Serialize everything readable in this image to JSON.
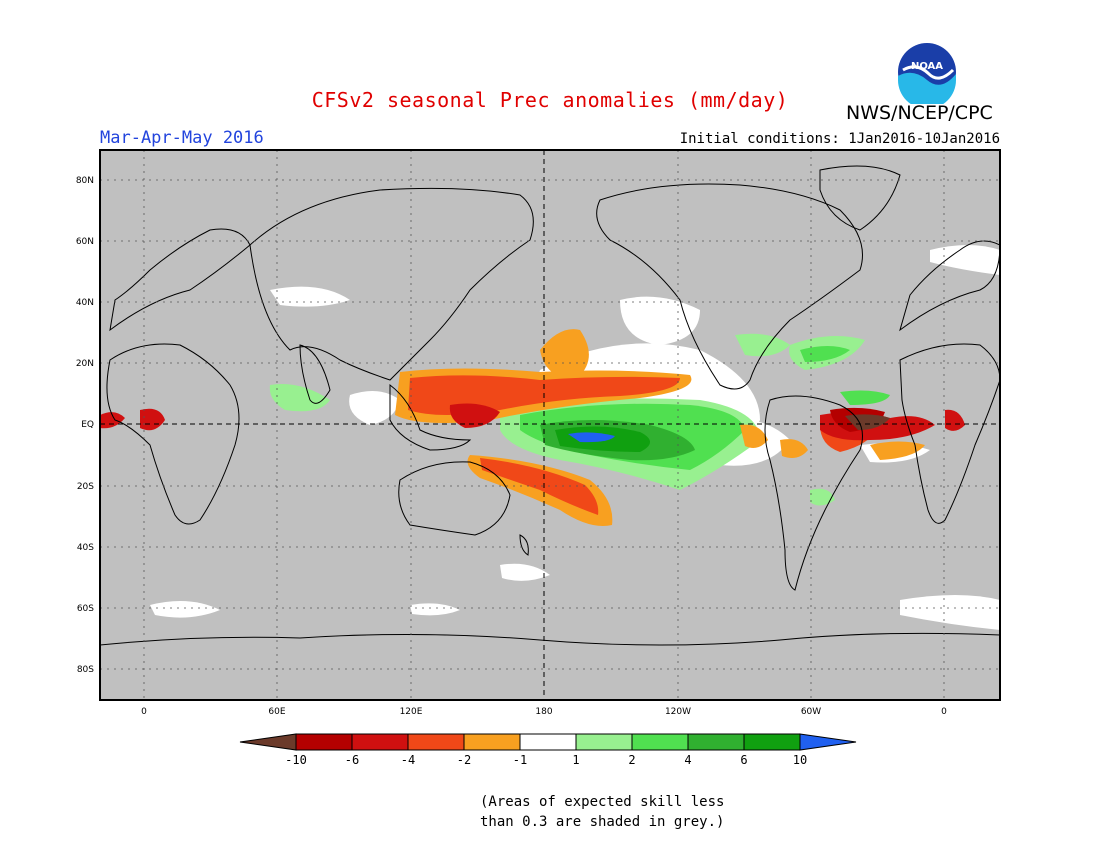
{
  "header": {
    "title": "CFSv2 seasonal Prec anomalies (mm/day)",
    "agency": "NWS/NCEP/CPC",
    "logo_text": "NOAA",
    "season": "Mar-Apr-May 2016",
    "initial_conditions": "Initial conditions: 1Jan2016-10Jan2016"
  },
  "map": {
    "lat_labels": [
      "80N",
      "60N",
      "40N",
      "20N",
      "EQ",
      "20S",
      "40S",
      "60S",
      "80S"
    ],
    "lon_labels": [
      "0",
      "60E",
      "120E",
      "180",
      "120W",
      "60W",
      "0"
    ],
    "colors": {
      "background": "#c0c0c0",
      "no_skill": "#c0c0c0"
    }
  },
  "colorbar": {
    "labels": [
      "-10",
      "-6",
      "-4",
      "-2",
      "-1",
      "1",
      "2",
      "4",
      "6",
      "10"
    ],
    "colors": [
      "#6b3a2a",
      "#b40000",
      "#d01010",
      "#f04818",
      "#f8a020",
      "#ffffff",
      "#98f090",
      "#50e050",
      "#30b030",
      "#10a010",
      "#2060f0"
    ]
  },
  "footnote": {
    "line1": "(Areas of expected skill less",
    "line2": "than 0.3 are shaded in grey.)"
  }
}
